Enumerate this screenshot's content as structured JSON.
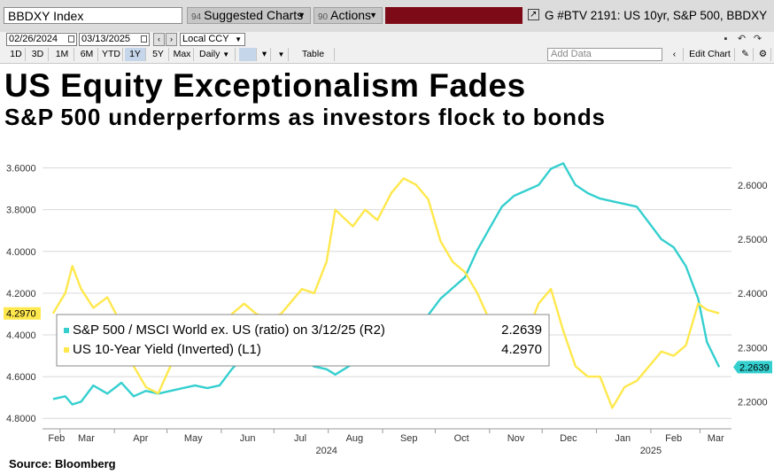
{
  "toolbar": {
    "security": "BBDXY Index",
    "suggested_label": "Suggested Charts",
    "suggested_num": "94",
    "actions_label": "Actions",
    "actions_num": "90",
    "chart_title": "G #BTV 2191: US 10yr, S&P 500, BBDXY",
    "start_date": "02/26/2024",
    "end_date": "03/13/2025",
    "currency": "Local CCY",
    "periods": [
      "1D",
      "3D",
      "1M",
      "6M",
      "YTD",
      "1Y",
      "5Y",
      "Max"
    ],
    "active_period": "1Y",
    "frequency": "Daily",
    "table_label": "Table",
    "add_data_placeholder": "Add Data",
    "edit_chart": "Edit Chart"
  },
  "headline": "US Equity Exceptionalism Fades",
  "subheadline": "S&P 500 underperforms as investors flock to bonds",
  "source": "Source:  Bloomberg",
  "colors": {
    "ratio": "#35cfcf",
    "yield": "#ffe84d",
    "grid": "#d9d9d9"
  },
  "chart_data": {
    "type": "line",
    "x_tick_labels": [
      "Feb",
      "Mar",
      "Apr",
      "May",
      "Jun",
      "Jul",
      "Aug",
      "Sep",
      "Oct",
      "Nov",
      "Dec",
      "Jan",
      "Feb",
      "Mar"
    ],
    "x_year_labels": [
      "2024",
      "2025"
    ],
    "left_axis": {
      "ticks": [
        "4.8000",
        "4.6000",
        "4.4000",
        "4.2000",
        "4.0000",
        "3.8000",
        "3.6000"
      ],
      "inverted": true,
      "range": [
        3.5,
        4.85
      ]
    },
    "right_axis": {
      "ticks": [
        "2.6000",
        "2.5000",
        "2.4000",
        "2.3000",
        "2.2000"
      ],
      "range": [
        2.15,
        2.67
      ]
    },
    "legend": [
      {
        "label": "S&P 500 / MSCI World ex. US (ratio) on 3/12/25 (R2)",
        "value": "2.2639"
      },
      {
        "label": "US 10-Year Yield (Inverted) (L1)",
        "value": "4.2970"
      }
    ],
    "last_labels": {
      "left": "4.2970",
      "right": "2.2639"
    },
    "series": [
      {
        "axis": "right",
        "color": "#35cfcf",
        "points": [
          [
            "2024-02-26",
            2.205
          ],
          [
            "2024-03-04",
            2.21
          ],
          [
            "2024-03-08",
            2.195
          ],
          [
            "2024-03-13",
            2.2
          ],
          [
            "2024-03-20",
            2.23
          ],
          [
            "2024-03-28",
            2.215
          ],
          [
            "2024-04-05",
            2.235
          ],
          [
            "2024-04-12",
            2.21
          ],
          [
            "2024-04-19",
            2.22
          ],
          [
            "2024-04-26",
            2.215
          ],
          [
            "2024-05-03",
            2.22
          ],
          [
            "2024-05-10",
            2.225
          ],
          [
            "2024-05-17",
            2.23
          ],
          [
            "2024-05-24",
            2.225
          ],
          [
            "2024-05-31",
            2.23
          ],
          [
            "2024-06-07",
            2.26
          ],
          [
            "2024-06-14",
            2.285
          ],
          [
            "2024-06-21",
            2.27
          ],
          [
            "2024-06-28",
            2.28
          ],
          [
            "2024-07-05",
            2.29
          ],
          [
            "2024-07-10",
            2.3
          ],
          [
            "2024-07-17",
            2.28
          ],
          [
            "2024-07-24",
            2.265
          ],
          [
            "2024-07-31",
            2.26
          ],
          [
            "2024-08-05",
            2.25
          ],
          [
            "2024-08-15",
            2.27
          ],
          [
            "2024-08-22",
            2.275
          ],
          [
            "2024-08-29",
            2.28
          ],
          [
            "2024-09-06",
            2.3
          ],
          [
            "2024-09-13",
            2.32
          ],
          [
            "2024-09-20",
            2.34
          ],
          [
            "2024-09-27",
            2.36
          ],
          [
            "2024-10-04",
            2.39
          ],
          [
            "2024-10-11",
            2.41
          ],
          [
            "2024-10-18",
            2.43
          ],
          [
            "2024-10-25",
            2.48
          ],
          [
            "2024-11-01",
            2.52
          ],
          [
            "2024-11-08",
            2.56
          ],
          [
            "2024-11-15",
            2.58
          ],
          [
            "2024-11-22",
            2.59
          ],
          [
            "2024-11-29",
            2.6
          ],
          [
            "2024-12-06",
            2.63
          ],
          [
            "2024-12-13",
            2.64
          ],
          [
            "2024-12-20",
            2.6
          ],
          [
            "2024-12-27",
            2.585
          ],
          [
            "2025-01-03",
            2.575
          ],
          [
            "2025-01-10",
            2.57
          ],
          [
            "2025-01-17",
            2.565
          ],
          [
            "2025-01-24",
            2.56
          ],
          [
            "2025-01-31",
            2.53
          ],
          [
            "2025-02-07",
            2.5
          ],
          [
            "2025-02-14",
            2.485
          ],
          [
            "2025-02-21",
            2.45
          ],
          [
            "2025-02-28",
            2.39
          ],
          [
            "2025-03-05",
            2.31
          ],
          [
            "2025-03-12",
            2.2639
          ]
        ]
      },
      {
        "axis": "left",
        "color": "#ffe84d",
        "points": [
          [
            "2024-02-26",
            4.297
          ],
          [
            "2024-03-04",
            4.2
          ],
          [
            "2024-03-08",
            4.07
          ],
          [
            "2024-03-13",
            4.18
          ],
          [
            "2024-03-20",
            4.27
          ],
          [
            "2024-03-28",
            4.22
          ],
          [
            "2024-04-05",
            4.35
          ],
          [
            "2024-04-12",
            4.55
          ],
          [
            "2024-04-19",
            4.65
          ],
          [
            "2024-04-26",
            4.68
          ],
          [
            "2024-05-03",
            4.55
          ],
          [
            "2024-05-10",
            4.48
          ],
          [
            "2024-05-17",
            4.4
          ],
          [
            "2024-05-24",
            4.45
          ],
          [
            "2024-05-31",
            4.5
          ],
          [
            "2024-06-07",
            4.3
          ],
          [
            "2024-06-14",
            4.25
          ],
          [
            "2024-06-21",
            4.3
          ],
          [
            "2024-06-28",
            4.32
          ],
          [
            "2024-07-05",
            4.3
          ],
          [
            "2024-07-10",
            4.25
          ],
          [
            "2024-07-17",
            4.18
          ],
          [
            "2024-07-24",
            4.2
          ],
          [
            "2024-07-31",
            4.05
          ],
          [
            "2024-08-05",
            3.8
          ],
          [
            "2024-08-15",
            3.88
          ],
          [
            "2024-08-22",
            3.8
          ],
          [
            "2024-08-29",
            3.85
          ],
          [
            "2024-09-06",
            3.72
          ],
          [
            "2024-09-13",
            3.65
          ],
          [
            "2024-09-20",
            3.68
          ],
          [
            "2024-09-27",
            3.75
          ],
          [
            "2024-10-04",
            3.95
          ],
          [
            "2024-10-11",
            4.05
          ],
          [
            "2024-10-18",
            4.1
          ],
          [
            "2024-10-25",
            4.2
          ],
          [
            "2024-11-01",
            4.33
          ],
          [
            "2024-11-08",
            4.35
          ],
          [
            "2024-11-15",
            4.42
          ],
          [
            "2024-11-22",
            4.4
          ],
          [
            "2024-11-29",
            4.25
          ],
          [
            "2024-12-06",
            4.18
          ],
          [
            "2024-12-13",
            4.38
          ],
          [
            "2024-12-20",
            4.55
          ],
          [
            "2024-12-27",
            4.6
          ],
          [
            "2025-01-03",
            4.6
          ],
          [
            "2025-01-10",
            4.75
          ],
          [
            "2025-01-17",
            4.65
          ],
          [
            "2025-01-24",
            4.62
          ],
          [
            "2025-01-31",
            4.55
          ],
          [
            "2025-02-07",
            4.48
          ],
          [
            "2025-02-14",
            4.5
          ],
          [
            "2025-02-21",
            4.45
          ],
          [
            "2025-02-28",
            4.25
          ],
          [
            "2025-03-05",
            4.28
          ],
          [
            "2025-03-12",
            4.297
          ]
        ]
      }
    ]
  }
}
